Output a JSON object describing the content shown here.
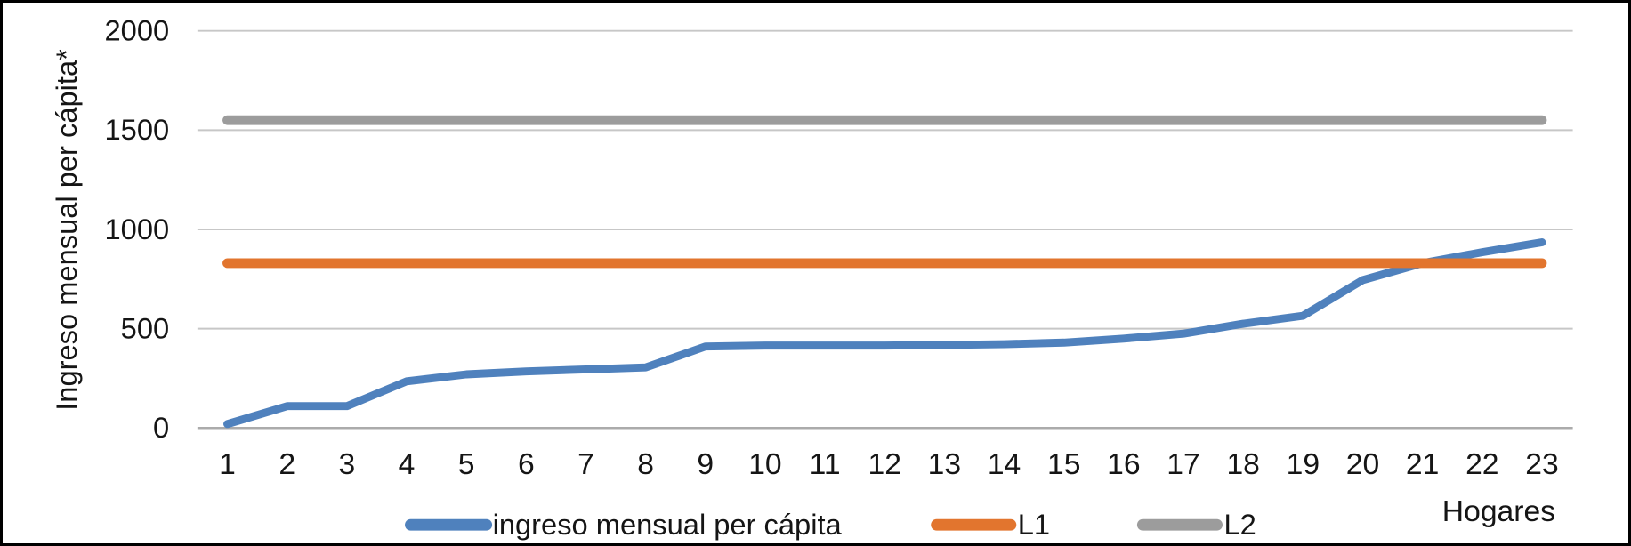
{
  "figure": {
    "background": "#ffffff",
    "border_color": "#000000"
  },
  "chart_data": {
    "type": "line",
    "title": "",
    "ylabel": "Ingreso mensual per cápita*",
    "xlabel": "Hogares",
    "categories": [
      1,
      2,
      3,
      4,
      5,
      6,
      7,
      8,
      9,
      10,
      11,
      12,
      13,
      14,
      15,
      16,
      17,
      18,
      19,
      20,
      21,
      22,
      23
    ],
    "ylim": [
      0,
      2000
    ],
    "yticks": [
      0,
      500,
      1000,
      1500,
      2000
    ],
    "grid": true,
    "legend_position": "bottom",
    "series": [
      {
        "name": "ingreso mensual per cápita",
        "color": "#4f81bd",
        "values": [
          20,
          110,
          110,
          235,
          270,
          285,
          295,
          305,
          410,
          415,
          415,
          415,
          418,
          422,
          430,
          450,
          475,
          525,
          565,
          745,
          830,
          885,
          935
        ]
      },
      {
        "name": "L1",
        "color": "#e2752e",
        "constant": 830
      },
      {
        "name": "L2",
        "color": "#9c9c9c",
        "constant": 1550
      }
    ],
    "colors": {
      "gridline": "#c7c7c7",
      "zero_axis": "#ababab",
      "text": "#151515"
    }
  }
}
